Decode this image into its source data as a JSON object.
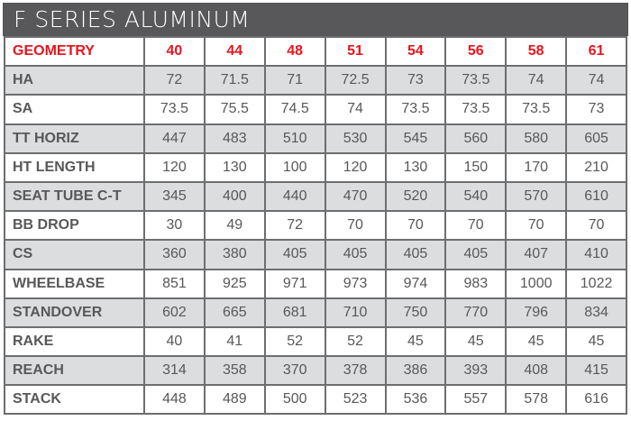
{
  "title": "F SERIES ALUMINUM",
  "colors": {
    "header_text": "#e8141e",
    "title_bg": "#58585a",
    "stripe": "#dcddde"
  },
  "table": {
    "header": [
      "GEOMETRY",
      "40",
      "44",
      "48",
      "51",
      "54",
      "56",
      "58",
      "61"
    ],
    "rows": [
      {
        "label": "HA",
        "values": [
          "72",
          "71.5",
          "71",
          "72.5",
          "73",
          "73.5",
          "74",
          "74"
        ]
      },
      {
        "label": "SA",
        "values": [
          "73.5",
          "75.5",
          "74.5",
          "74",
          "73.5",
          "73.5",
          "73.5",
          "73"
        ]
      },
      {
        "label": "TT HORIZ",
        "values": [
          "447",
          "483",
          "510",
          "530",
          "545",
          "560",
          "580",
          "605"
        ]
      },
      {
        "label": "HT LENGTH",
        "values": [
          "120",
          "130",
          "100",
          "120",
          "130",
          "150",
          "170",
          "210"
        ]
      },
      {
        "label": "SEAT TUBE C-T",
        "values": [
          "345",
          "400",
          "440",
          "470",
          "520",
          "540",
          "570",
          "610"
        ]
      },
      {
        "label": "BB DROP",
        "values": [
          "30",
          "49",
          "72",
          "70",
          "70",
          "70",
          "70",
          "70"
        ]
      },
      {
        "label": "CS",
        "values": [
          "360",
          "380",
          "405",
          "405",
          "405",
          "405",
          "407",
          "410"
        ]
      },
      {
        "label": "WHEELBASE",
        "values": [
          "851",
          "925",
          "971",
          "973",
          "974",
          "983",
          "1000",
          "1022"
        ]
      },
      {
        "label": "STANDOVER",
        "values": [
          "602",
          "665",
          "681",
          "710",
          "750",
          "770",
          "796",
          "834"
        ]
      },
      {
        "label": "RAKE",
        "values": [
          "40",
          "41",
          "52",
          "52",
          "45",
          "45",
          "45",
          "45"
        ]
      },
      {
        "label": "REACH",
        "values": [
          "314",
          "358",
          "370",
          "378",
          "386",
          "393",
          "408",
          "415"
        ]
      },
      {
        "label": "STACK",
        "values": [
          "448",
          "489",
          "500",
          "523",
          "536",
          "557",
          "578",
          "616"
        ]
      }
    ]
  }
}
